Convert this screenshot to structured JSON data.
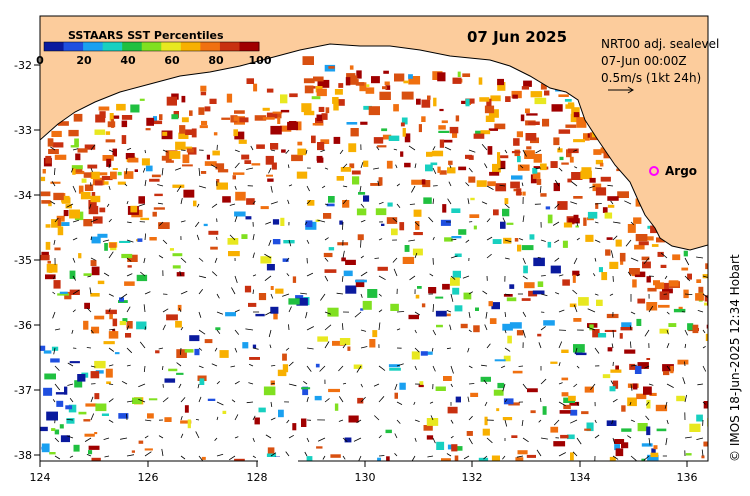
{
  "title": "07 Jun 2025",
  "legend": {
    "title": "SSTAARS SST Percentiles",
    "ticks": [
      "0",
      "20",
      "40",
      "60",
      "80",
      "100"
    ],
    "colors": [
      "#0a1a9e",
      "#1f4fe0",
      "#1aa0f0",
      "#18d0c0",
      "#20c040",
      "#80e020",
      "#e8e820",
      "#f8b000",
      "#f07010",
      "#c83010",
      "#a00000"
    ]
  },
  "info": {
    "line1": "NRT00 adj. sealevel",
    "line2": "07-Jun 00:00Z",
    "line3": "0.5m/s (1kt 24h)"
  },
  "argo": {
    "label": "Argo",
    "color": "#ff00ff"
  },
  "credit": "© IMOS 18-Jun-2025 12:34 Hobart",
  "axes": {
    "y_ticks": [
      "-32",
      "-33",
      "-34",
      "-35",
      "-36",
      "-37",
      "-38"
    ],
    "x_ticks": [
      "124",
      "126",
      "128",
      "130",
      "132",
      "134",
      "136"
    ]
  },
  "colors": {
    "land": "#fccc9c",
    "coast": "#000000"
  }
}
